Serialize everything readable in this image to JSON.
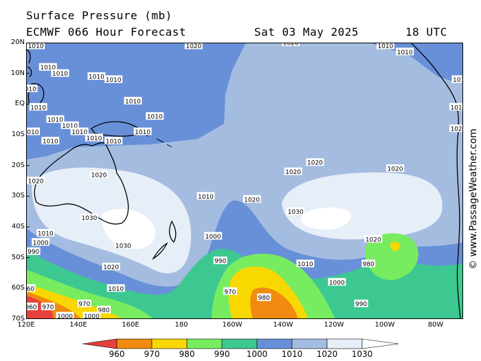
{
  "header": {
    "title": "Surface Pressure (mb)",
    "model": "ECMWF 066 Hour Forecast",
    "date": "Sat 03 May 2025",
    "time": "18 UTC"
  },
  "latitude_labels": [
    "20N",
    "10N",
    "EQ",
    "10S",
    "20S",
    "30S",
    "40S",
    "50S",
    "60S",
    "70S"
  ],
  "longitude_labels": [
    "120E",
    "140E",
    "160E",
    "180",
    "160W",
    "140W",
    "120W",
    "100W",
    "80W"
  ],
  "copyright": "© www.PassageWeather.com",
  "colorbar": {
    "labels": [
      "960",
      "970",
      "980",
      "990",
      "1000",
      "1010",
      "1020",
      "1030"
    ],
    "colors": [
      "#e8403c",
      "#f08a10",
      "#f8d800",
      "#78ec60",
      "#3cc890",
      "#6890d8",
      "#a4bce0",
      "#e6eef8",
      "#ffffff"
    ]
  },
  "isobar_labels": [
    {
      "text": "1010",
      "lon": 117,
      "lat": 19
    },
    {
      "text": "1010",
      "lon": 124,
      "lat": 19
    },
    {
      "text": "1010",
      "lon": 129,
      "lat": 12
    },
    {
      "text": "1010",
      "lon": 134,
      "lat": 10
    },
    {
      "text": "1010",
      "lon": 149,
      "lat": 9
    },
    {
      "text": "1010",
      "lon": 156,
      "lat": 8
    },
    {
      "text": "1010",
      "lon": 164,
      "lat": 1
    },
    {
      "text": "1010",
      "lon": 121,
      "lat": 5
    },
    {
      "text": "1010",
      "lon": 125,
      "lat": -1
    },
    {
      "text": "1010",
      "lon": 132,
      "lat": -5
    },
    {
      "text": "1010",
      "lon": 138,
      "lat": -7
    },
    {
      "text": "1010",
      "lon": 142,
      "lat": -9
    },
    {
      "text": "1010",
      "lon": 148,
      "lat": -11
    },
    {
      "text": "1010",
      "lon": 156,
      "lat": -12
    },
    {
      "text": "1010",
      "lon": 168,
      "lat": -9
    },
    {
      "text": "1010",
      "lon": 173,
      "lat": -4
    },
    {
      "text": "1010",
      "lon": 122,
      "lat": -9
    },
    {
      "text": "1010",
      "lon": 130,
      "lat": -12
    },
    {
      "text": "1020",
      "lon": 189,
      "lat": 19
    },
    {
      "text": "1020",
      "lon": 229,
      "lat": 20
    },
    {
      "text": "1010",
      "lon": 268,
      "lat": 19
    },
    {
      "text": "1010",
      "lon": 276,
      "lat": 17
    },
    {
      "text": "1010",
      "lon": 299,
      "lat": 8
    },
    {
      "text": "1010",
      "lon": 298,
      "lat": -1
    },
    {
      "text": "1020",
      "lon": 298,
      "lat": -8
    },
    {
      "text": "1020",
      "lon": 124,
      "lat": -25
    },
    {
      "text": "1020",
      "lon": 150,
      "lat": -23
    },
    {
      "text": "1020",
      "lon": 230,
      "lat": -22
    },
    {
      "text": "1020",
      "lon": 239,
      "lat": -19
    },
    {
      "text": "1020",
      "lon": 272,
      "lat": -21
    },
    {
      "text": "1020",
      "lon": 213,
      "lat": -31
    },
    {
      "text": "1030",
      "lon": 146,
      "lat": -37
    },
    {
      "text": "1030",
      "lon": 231,
      "lat": -35
    },
    {
      "text": "1030",
      "lon": 160,
      "lat": -46
    },
    {
      "text": "1020",
      "lon": 155,
      "lat": -53
    },
    {
      "text": "1020",
      "lon": 263,
      "lat": -44
    },
    {
      "text": "1010",
      "lon": 194,
      "lat": -30
    },
    {
      "text": "1010",
      "lon": 128,
      "lat": -42
    },
    {
      "text": "1000",
      "lon": 126,
      "lat": -45
    },
    {
      "text": "990",
      "lon": 123,
      "lat": -48
    },
    {
      "text": "1000",
      "lon": 197,
      "lat": -43
    },
    {
      "text": "1010",
      "lon": 157,
      "lat": -60
    },
    {
      "text": "990",
      "lon": 200,
      "lat": -51
    },
    {
      "text": "1010",
      "lon": 235,
      "lat": -52
    },
    {
      "text": "1000",
      "lon": 248,
      "lat": -58
    },
    {
      "text": "980",
      "lon": 261,
      "lat": -52
    },
    {
      "text": "990",
      "lon": 258,
      "lat": -65
    },
    {
      "text": "970",
      "lon": 204,
      "lat": -61
    },
    {
      "text": "980",
      "lon": 218,
      "lat": -63
    },
    {
      "text": "960",
      "lon": 121,
      "lat": -60
    },
    {
      "text": "960",
      "lon": 122,
      "lat": -66
    },
    {
      "text": "970",
      "lon": 129,
      "lat": -66
    },
    {
      "text": "970",
      "lon": 144,
      "lat": -65
    },
    {
      "text": "980",
      "lon": 152,
      "lat": -67
    },
    {
      "text": "1000",
      "lon": 136,
      "lat": -69
    },
    {
      "text": "1000",
      "lon": 147,
      "lat": -69
    }
  ]
}
